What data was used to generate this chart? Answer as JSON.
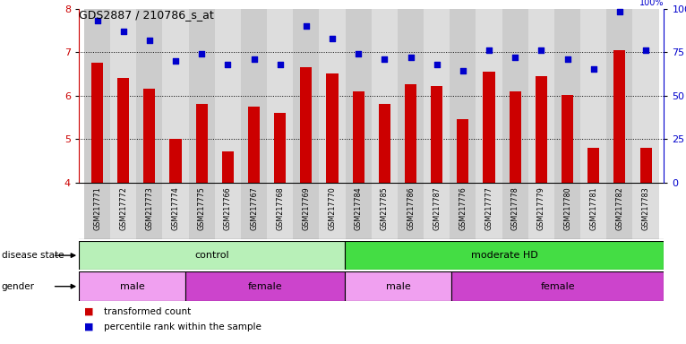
{
  "title": "GDS2887 / 210786_s_at",
  "samples": [
    "GSM217771",
    "GSM217772",
    "GSM217773",
    "GSM217774",
    "GSM217775",
    "GSM217766",
    "GSM217767",
    "GSM217768",
    "GSM217769",
    "GSM217770",
    "GSM217784",
    "GSM217785",
    "GSM217786",
    "GSM217787",
    "GSM217776",
    "GSM217777",
    "GSM217778",
    "GSM217779",
    "GSM217780",
    "GSM217781",
    "GSM217782",
    "GSM217783"
  ],
  "bar_values": [
    6.75,
    6.4,
    6.15,
    5.0,
    5.8,
    4.72,
    5.75,
    5.6,
    6.65,
    6.5,
    6.1,
    5.8,
    6.25,
    6.22,
    5.45,
    6.55,
    6.1,
    6.45,
    6.02,
    4.8,
    7.05,
    4.8
  ],
  "dot_values": [
    93,
    87,
    82,
    70,
    74,
    68,
    71,
    68,
    90,
    83,
    74,
    71,
    72,
    68,
    64,
    76,
    72,
    76,
    71,
    65,
    98,
    76
  ],
  "ylim_left": [
    4,
    8
  ],
  "ylim_right": [
    0,
    100
  ],
  "yticks_left": [
    4,
    5,
    6,
    7,
    8
  ],
  "yticks_right": [
    0,
    25,
    50,
    75,
    100
  ],
  "bar_color": "#cc0000",
  "dot_color": "#0000cc",
  "disease_state_groups": [
    {
      "label": "control",
      "start": 0,
      "end": 10,
      "color": "#b8f0b8"
    },
    {
      "label": "moderate HD",
      "start": 10,
      "end": 22,
      "color": "#44dd44"
    }
  ],
  "gender_groups": [
    {
      "label": "male",
      "start": 0,
      "end": 4,
      "color": "#f0a0f0"
    },
    {
      "label": "female",
      "start": 4,
      "end": 10,
      "color": "#cc44cc"
    },
    {
      "label": "male",
      "start": 10,
      "end": 14,
      "color": "#f0a0f0"
    },
    {
      "label": "female",
      "start": 14,
      "end": 22,
      "color": "#cc44cc"
    }
  ],
  "legend_items": [
    {
      "label": "transformed count",
      "color": "#cc0000"
    },
    {
      "label": "percentile rank within the sample",
      "color": "#0000cc"
    }
  ],
  "sample_bg_color": "#cccccc",
  "sample_bg_alt": "#dddddd"
}
